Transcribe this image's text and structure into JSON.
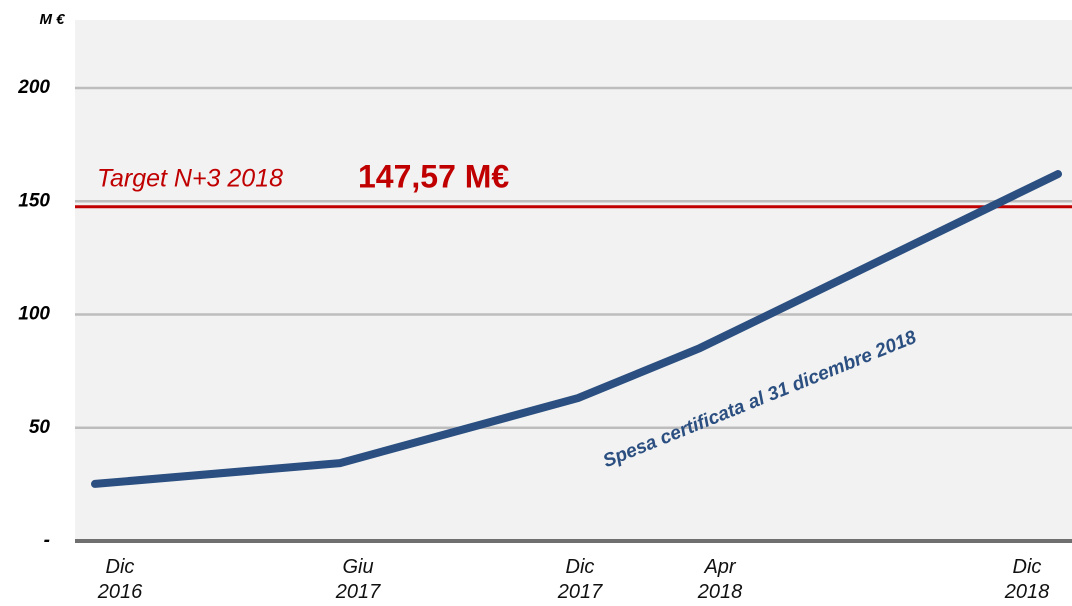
{
  "chart_data": {
    "type": "line",
    "y_label": "M €",
    "categories": [
      "Dic 2016",
      "Giu 2017",
      "Dic 2017",
      "Apr 2018",
      "Dic 2018"
    ],
    "series": [
      {
        "name": "Spesa certificata al 31 dicembre 2018",
        "color": "#2b4f80",
        "values": [
          25.2,
          34.4,
          63.1,
          85.2,
          162
        ]
      }
    ],
    "ylim": [
      0,
      230
    ],
    "yticks": [
      {
        "value": 0,
        "label": "-"
      },
      50,
      100,
      150,
      200
    ],
    "grid": true,
    "target": {
      "label": "Target N+3 2018",
      "value": 147.57,
      "value_label": "147,57 M€",
      "color": "#c00000"
    }
  }
}
